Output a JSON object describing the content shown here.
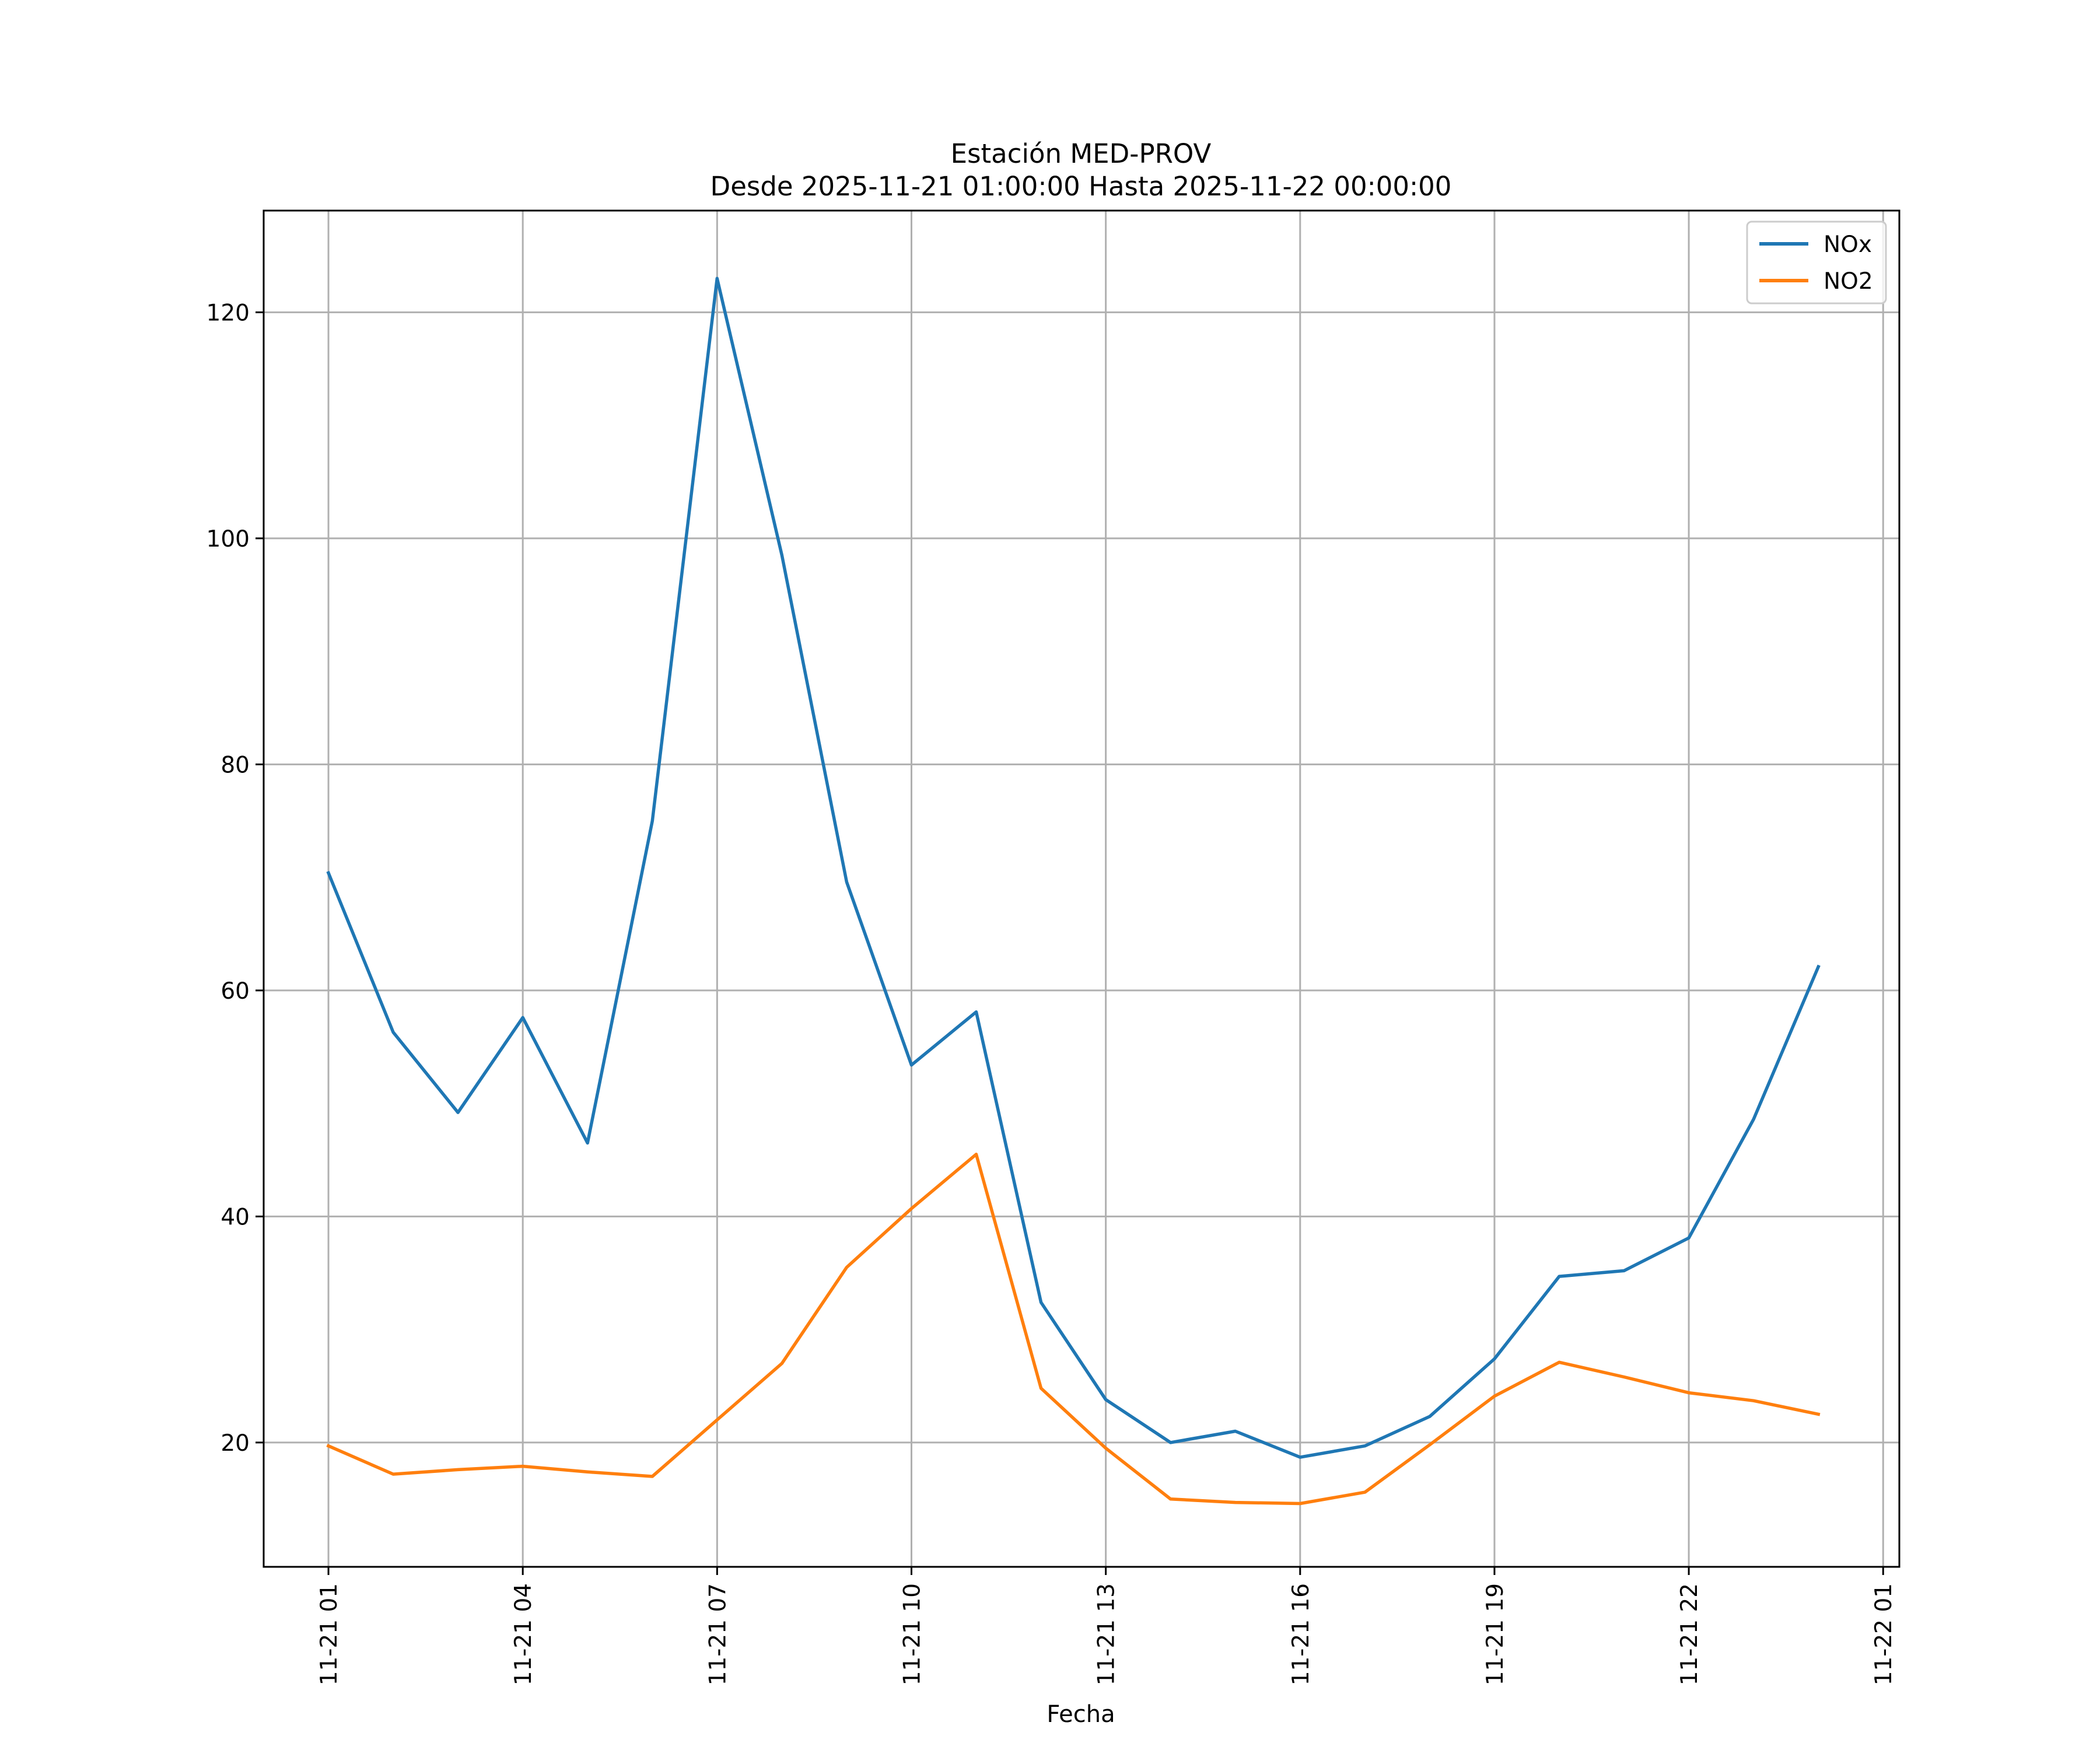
{
  "chart_data": {
    "type": "line",
    "title": "Estación MED-PROV",
    "subtitle": "Desde 2025-11-21 01:00:00 Hasta 2025-11-22 00:00:00",
    "xlabel": "Fecha",
    "ylabel": "",
    "x": [
      "2025-11-21 01:00",
      "2025-11-21 02:00",
      "2025-11-21 03:00",
      "2025-11-21 04:00",
      "2025-11-21 05:00",
      "2025-11-21 06:00",
      "2025-11-21 07:00",
      "2025-11-21 08:00",
      "2025-11-21 09:00",
      "2025-11-21 10:00",
      "2025-11-21 11:00",
      "2025-11-21 12:00",
      "2025-11-21 13:00",
      "2025-11-21 14:00",
      "2025-11-21 15:00",
      "2025-11-21 16:00",
      "2025-11-21 17:00",
      "2025-11-21 18:00",
      "2025-11-21 19:00",
      "2025-11-21 20:00",
      "2025-11-21 21:00",
      "2025-11-21 22:00",
      "2025-11-21 23:00",
      "2025-11-22 00:00"
    ],
    "xlim": [
      "2025-11-21 00:00",
      "2025-11-22 01:15"
    ],
    "x_ticks": [
      "2025-11-21 01:00",
      "2025-11-21 04:00",
      "2025-11-21 07:00",
      "2025-11-21 10:00",
      "2025-11-21 13:00",
      "2025-11-21 16:00",
      "2025-11-21 19:00",
      "2025-11-21 22:00",
      "2025-11-22 01:00"
    ],
    "x_tick_labels": [
      "11-21 01",
      "11-21 04",
      "11-21 07",
      "11-21 10",
      "11-21 13",
      "11-21 16",
      "11-21 19",
      "11-21 22",
      "11-22 01"
    ],
    "ylim": [
      9,
      129
    ],
    "y_ticks": [
      20,
      40,
      60,
      80,
      100,
      120
    ],
    "y_tick_labels": [
      "20",
      "40",
      "60",
      "80",
      "100",
      "120"
    ],
    "grid": true,
    "legend_position": "top-right",
    "series": [
      {
        "name": "NOx",
        "color": "#1f77b4",
        "values": [
          70.4,
          56.3,
          49.2,
          57.6,
          46.5,
          75.0,
          123.0,
          98.5,
          69.6,
          53.4,
          58.1,
          32.4,
          23.8,
          20.0,
          21.0,
          18.7,
          19.7,
          22.3,
          27.4,
          34.7,
          35.2,
          38.1,
          48.6,
          62.1
        ]
      },
      {
        "name": "NO2",
        "color": "#ff7f0e",
        "values": [
          19.7,
          17.2,
          17.6,
          17.9,
          17.4,
          17.0,
          22.0,
          27.0,
          35.5,
          40.7,
          45.5,
          24.8,
          19.5,
          15.0,
          14.7,
          14.6,
          15.6,
          19.8,
          24.1,
          27.1,
          25.8,
          24.4,
          23.7,
          22.5
        ]
      }
    ]
  }
}
